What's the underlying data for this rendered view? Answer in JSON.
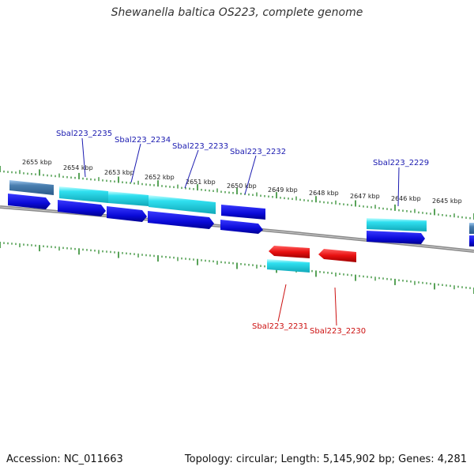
{
  "title": "Shewanella baltica OS223, complete genome",
  "footer": {
    "accession": "Accession: NC_011663",
    "stats": "Topology: circular; Length: 5,145,902 bp; Genes: 4,281"
  },
  "colors": {
    "tick": "#2e8b2e",
    "backbone": "#8a8a8a",
    "gene_blue": "#1010e0",
    "gene_cyan": "#20c8d8",
    "gene_steel": "#4a7fb0",
    "gene_red": "#e01010",
    "label_blue": "#1a1ab0",
    "label_red": "#cc1010"
  },
  "kbp_labels": [
    "2655 kbp",
    "2654 kbp",
    "2653 kbp",
    "2652 kbp",
    "2651 kbp",
    "2650 kbp",
    "2649 kbp",
    "2648 kbp",
    "2647 kbp",
    "2646 kbp",
    "2645 kbp"
  ],
  "gene_labels_top": [
    "Sbal223_2235",
    "Sbal223_2234",
    "Sbal223_2233",
    "Sbal223_2232",
    "Sbal223_2229"
  ],
  "gene_labels_bottom": [
    "Sbal223_2231",
    "Sbal223_2230"
  ]
}
